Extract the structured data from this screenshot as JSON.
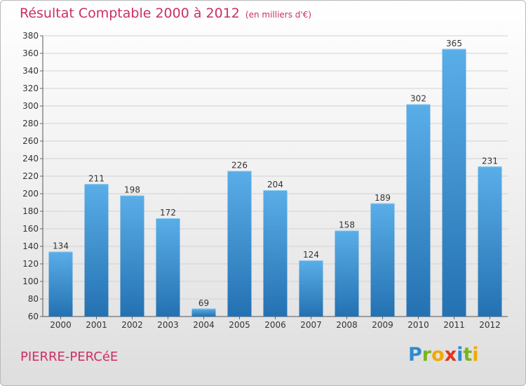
{
  "title": "Résultat Comptable 2000 à 2012",
  "subtitle": "(en milliers d'€)",
  "commune": "PIERRE-PERCéE",
  "logo": {
    "letters": [
      "P",
      "r",
      "o",
      "x",
      "i",
      "t",
      "i"
    ],
    "colors": [
      "#2c8bd1",
      "#7ab51d",
      "#f2a900",
      "#e2361c",
      "#2c8bd1",
      "#7ab51d",
      "#f2a900"
    ]
  },
  "colors": {
    "bar_top": "#5aaee8",
    "bar_bottom": "#2471b2",
    "accent": "#cc2f61"
  },
  "chart_data": {
    "type": "bar",
    "title": "Résultat Comptable 2000 à 2012",
    "xlabel": "",
    "ylabel": "",
    "categories": [
      "2000",
      "2001",
      "2002",
      "2003",
      "2004",
      "2005",
      "2006",
      "2007",
      "2008",
      "2009",
      "2010",
      "2011",
      "2012"
    ],
    "values": [
      134,
      211,
      198,
      172,
      69,
      226,
      204,
      124,
      158,
      189,
      302,
      365,
      231
    ],
    "ylim": [
      60,
      380
    ],
    "yticks": [
      60,
      80,
      100,
      120,
      140,
      160,
      180,
      200,
      220,
      240,
      260,
      280,
      300,
      320,
      340,
      360,
      380
    ],
    "grid": true,
    "legend": "none"
  }
}
